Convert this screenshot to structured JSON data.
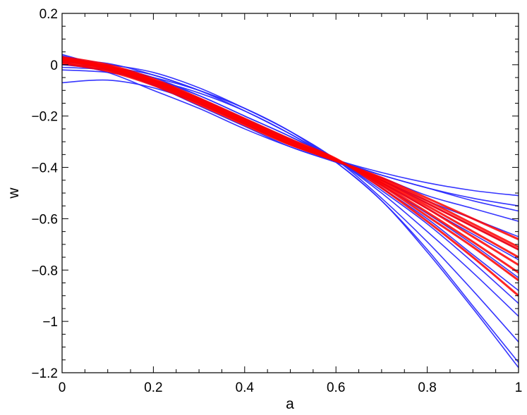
{
  "chart_data": {
    "type": "line",
    "title": "",
    "xlabel": "a",
    "ylabel": "w",
    "xlim": [
      0,
      1
    ],
    "ylim": [
      -1.2,
      0.2
    ],
    "x_ticks": [
      0,
      0.2,
      0.4,
      0.6,
      0.8,
      1
    ],
    "x_tick_labels": [
      "0",
      "0.2",
      "0.4",
      "0.6",
      "0.8",
      "1"
    ],
    "y_ticks": [
      0.2,
      0,
      -0.2,
      -0.4,
      -0.6,
      -0.8,
      -1,
      -1.2
    ],
    "y_tick_labels": [
      "0.2",
      "0",
      "−0.2",
      "−0.4",
      "−0.6",
      "−0.8",
      "−1",
      "−1.2"
    ],
    "grid": false,
    "legend": "none",
    "x": [
      0,
      0.1,
      0.2,
      0.3,
      0.4,
      0.5,
      0.6,
      0.7,
      0.8,
      0.9,
      1.0
    ],
    "series": [
      {
        "color": "#2b2bff",
        "values": [
          0.035,
          -0.01,
          -0.07,
          -0.14,
          -0.22,
          -0.3,
          -0.37,
          -0.42,
          -0.46,
          -0.49,
          -0.51
        ]
      },
      {
        "color": "#2b2bff",
        "values": [
          0.03,
          -0.015,
          -0.075,
          -0.15,
          -0.23,
          -0.31,
          -0.375,
          -0.43,
          -0.48,
          -0.52,
          -0.55
        ]
      },
      {
        "color": "#2b2bff",
        "values": [
          -0.07,
          -0.06,
          -0.09,
          -0.15,
          -0.23,
          -0.31,
          -0.37,
          -0.43,
          -0.48,
          -0.53,
          -0.57
        ]
      },
      {
        "color": "#2b2bff",
        "values": [
          0.02,
          -0.02,
          -0.08,
          -0.16,
          -0.24,
          -0.32,
          -0.38,
          -0.44,
          -0.51,
          -0.56,
          -0.61
        ]
      },
      {
        "color": "#2b2bff",
        "values": [
          0.01,
          -0.03,
          -0.1,
          -0.17,
          -0.25,
          -0.32,
          -0.38,
          -0.45,
          -0.53,
          -0.6,
          -0.67
        ]
      },
      {
        "color": "#2b2bff",
        "values": [
          0.04,
          -0.01,
          -0.06,
          -0.13,
          -0.21,
          -0.29,
          -0.37,
          -0.46,
          -0.56,
          -0.66,
          -0.76
        ]
      },
      {
        "color": "#2b2bff",
        "values": [
          0.02,
          0.005,
          -0.04,
          -0.1,
          -0.18,
          -0.27,
          -0.37,
          -0.48,
          -0.6,
          -0.74,
          -0.88
        ]
      },
      {
        "color": "#2b2bff",
        "values": [
          0.01,
          0.0,
          -0.03,
          -0.09,
          -0.17,
          -0.26,
          -0.37,
          -0.5,
          -0.65,
          -0.81,
          -0.98
        ]
      },
      {
        "color": "#2b2bff",
        "values": [
          0.0,
          -0.01,
          -0.04,
          -0.1,
          -0.17,
          -0.26,
          -0.37,
          -0.52,
          -0.69,
          -0.88,
          -1.08
        ]
      },
      {
        "color": "#2b2bff",
        "values": [
          -0.01,
          -0.02,
          -0.05,
          -0.1,
          -0.17,
          -0.26,
          -0.38,
          -0.53,
          -0.72,
          -0.94,
          -1.16
        ]
      },
      {
        "color": "#2b2bff",
        "values": [
          -0.02,
          -0.03,
          -0.06,
          -0.11,
          -0.18,
          -0.27,
          -0.38,
          -0.53,
          -0.73,
          -0.95,
          -1.18
        ]
      },
      {
        "color": "#2b2bff",
        "values": [
          0.03,
          -0.005,
          -0.05,
          -0.12,
          -0.2,
          -0.28,
          -0.37,
          -0.47,
          -0.58,
          -0.7,
          -0.83
        ]
      },
      {
        "color": "#2b2bff",
        "values": [
          0.015,
          -0.015,
          -0.07,
          -0.14,
          -0.22,
          -0.3,
          -0.37,
          -0.45,
          -0.54,
          -0.63,
          -0.72
        ]
      },
      {
        "color": "#2b2bff",
        "values": [
          0.0,
          -0.02,
          -0.06,
          -0.12,
          -0.2,
          -0.28,
          -0.37,
          -0.49,
          -0.62,
          -0.77,
          -0.93
        ]
      },
      {
        "color": "#ff0000",
        "values": [
          0.02,
          -0.01,
          -0.065,
          -0.14,
          -0.22,
          -0.3,
          -0.37,
          -0.46,
          -0.56,
          -0.67,
          -0.78
        ]
      },
      {
        "color": "#ff0000",
        "values": [
          0.015,
          -0.015,
          -0.07,
          -0.145,
          -0.225,
          -0.305,
          -0.372,
          -0.45,
          -0.54,
          -0.63,
          -0.72
        ]
      },
      {
        "color": "#ff0000",
        "values": [
          0.025,
          -0.005,
          -0.06,
          -0.135,
          -0.215,
          -0.295,
          -0.368,
          -0.47,
          -0.59,
          -0.71,
          -0.84
        ]
      },
      {
        "color": "#ff0000",
        "values": [
          0.01,
          -0.02,
          -0.075,
          -0.15,
          -0.23,
          -0.31,
          -0.375,
          -0.44,
          -0.52,
          -0.6,
          -0.68
        ]
      },
      {
        "color": "#ff0000",
        "values": [
          0.03,
          0.0,
          -0.055,
          -0.13,
          -0.21,
          -0.29,
          -0.366,
          -0.48,
          -0.61,
          -0.75,
          -0.9
        ]
      },
      {
        "color": "#ff0000",
        "values": [
          0.005,
          -0.025,
          -0.08,
          -0.155,
          -0.235,
          -0.312,
          -0.374,
          -0.445,
          -0.53,
          -0.62,
          -0.71
        ]
      },
      {
        "color": "#ff0000",
        "values": [
          0.02,
          -0.012,
          -0.068,
          -0.142,
          -0.222,
          -0.302,
          -0.371,
          -0.455,
          -0.55,
          -0.65,
          -0.75
        ]
      },
      {
        "color": "#ff0000",
        "values": [
          0.025,
          -0.008,
          -0.062,
          -0.138,
          -0.218,
          -0.298,
          -0.369,
          -0.465,
          -0.575,
          -0.69,
          -0.81
        ]
      }
    ]
  }
}
